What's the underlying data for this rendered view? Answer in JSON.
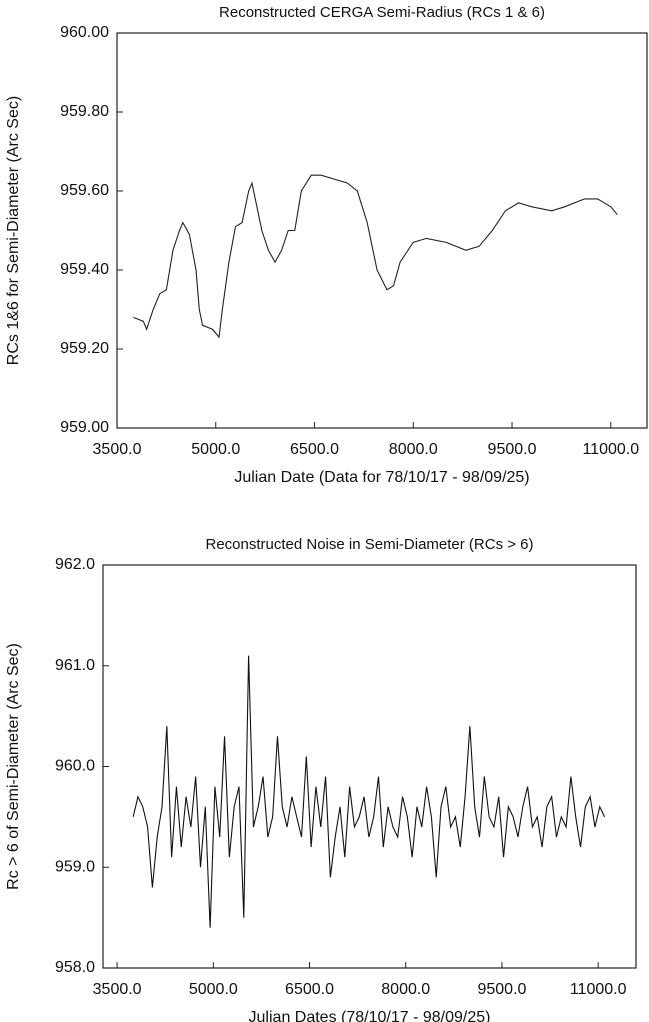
{
  "chart_data": [
    {
      "type": "line",
      "title": "Reconstructed CERGA Semi-Radius (RCs 1 & 6)",
      "x_label": "Julian Date (Data for 78/10/17 - 98/09/25)",
      "y_label": "RCs 1&6 for Semi-Diameter (Arc Sec)",
      "xlim": [
        3500,
        11550
      ],
      "ylim": [
        959.0,
        960.0
      ],
      "xticks": [
        {
          "value": 3500,
          "label": "3500.0"
        },
        {
          "value": 5000,
          "label": "5000.0"
        },
        {
          "value": 6500,
          "label": "6500.0"
        },
        {
          "value": 8000,
          "label": "8000.0"
        },
        {
          "value": 9500,
          "label": "9500.0"
        },
        {
          "value": 11000,
          "label": "11000.0"
        }
      ],
      "yticks": [
        {
          "value": 959.0,
          "label": "959.00"
        },
        {
          "value": 959.2,
          "label": "959.20"
        },
        {
          "value": 959.4,
          "label": "959.40"
        },
        {
          "value": 959.6,
          "label": "959.60"
        },
        {
          "value": 959.8,
          "label": "959.80"
        },
        {
          "value": 960.0,
          "label": "960.00"
        }
      ],
      "x": [
        3750,
        3900,
        3950,
        4050,
        4150,
        4250,
        4350,
        4450,
        4500,
        4600,
        4700,
        4750,
        4800,
        4950,
        5050,
        5100,
        5200,
        5300,
        5400,
        5500,
        5550,
        5600,
        5700,
        5800,
        5900,
        6000,
        6100,
        6200,
        6300,
        6450,
        6600,
        6800,
        7000,
        7150,
        7300,
        7450,
        7600,
        7700,
        7800,
        8000,
        8200,
        8500,
        8800,
        9000,
        9200,
        9400,
        9600,
        9800,
        10100,
        10300,
        10600,
        10800,
        11000,
        11100
      ],
      "series": [
        {
          "color": "#222222",
          "values": [
            959.28,
            959.27,
            959.25,
            959.3,
            959.34,
            959.35,
            959.45,
            959.5,
            959.52,
            959.49,
            959.4,
            959.3,
            959.26,
            959.25,
            959.23,
            959.3,
            959.42,
            959.51,
            959.52,
            959.6,
            959.62,
            959.58,
            959.5,
            959.45,
            959.42,
            959.45,
            959.5,
            959.5,
            959.6,
            959.64,
            959.64,
            959.63,
            959.62,
            959.6,
            959.52,
            959.4,
            959.35,
            959.36,
            959.42,
            959.47,
            959.48,
            959.47,
            959.45,
            959.46,
            959.5,
            959.55,
            959.57,
            959.56,
            959.55,
            959.56,
            959.58,
            959.58,
            959.56,
            959.54
          ]
        }
      ]
    },
    {
      "type": "line",
      "title": "Reconstructed Noise in Semi-Diameter (RCs > 6)",
      "x_label": "Julian Dates (78/10/17 - 98/09/25)",
      "y_label": "Rc > 6 of Semi-Diameter (Arc Sec)",
      "xlim": [
        3280,
        11590
      ],
      "ylim": [
        958.0,
        962.0
      ],
      "xticks": [
        {
          "value": 3500,
          "label": "3500.0"
        },
        {
          "value": 5000,
          "label": "5000.0"
        },
        {
          "value": 6500,
          "label": "6500.0"
        },
        {
          "value": 8000,
          "label": "8000.0"
        },
        {
          "value": 9500,
          "label": "9500.0"
        },
        {
          "value": 11000,
          "label": "11000.0"
        }
      ],
      "yticks": [
        {
          "value": 958.0,
          "label": "958.0"
        },
        {
          "value": 959.0,
          "label": "959.0"
        },
        {
          "value": 960.0,
          "label": "960.0"
        },
        {
          "value": 961.0,
          "label": "961.0"
        },
        {
          "value": 962.0,
          "label": "962.0"
        }
      ],
      "x": [
        3750,
        3825,
        3900,
        3975,
        4050,
        4125,
        4200,
        4275,
        4350,
        4425,
        4500,
        4575,
        4650,
        4725,
        4800,
        4875,
        4950,
        5025,
        5100,
        5175,
        5250,
        5325,
        5400,
        5475,
        5550,
        5625,
        5700,
        5775,
        5850,
        5925,
        6000,
        6075,
        6150,
        6225,
        6300,
        6375,
        6450,
        6525,
        6600,
        6675,
        6750,
        6825,
        6900,
        6975,
        7050,
        7125,
        7200,
        7275,
        7350,
        7425,
        7500,
        7575,
        7650,
        7725,
        7800,
        7875,
        7950,
        8025,
        8100,
        8175,
        8250,
        8325,
        8400,
        8475,
        8550,
        8625,
        8700,
        8775,
        8850,
        8925,
        9000,
        9075,
        9150,
        9225,
        9300,
        9375,
        9450,
        9525,
        9600,
        9675,
        9750,
        9825,
        9900,
        9975,
        10050,
        10125,
        10200,
        10275,
        10350,
        10425,
        10500,
        10575,
        10650,
        10725,
        10800,
        10875,
        10950,
        11025,
        11100
      ],
      "series": [
        {
          "color": "#111111",
          "values": [
            959.5,
            959.7,
            959.6,
            959.4,
            958.8,
            959.3,
            959.6,
            960.4,
            959.1,
            959.8,
            959.2,
            959.7,
            959.4,
            959.9,
            959.0,
            959.6,
            958.4,
            959.8,
            959.3,
            960.3,
            959.1,
            959.6,
            959.8,
            958.5,
            961.1,
            959.4,
            959.6,
            959.9,
            959.3,
            959.5,
            960.3,
            959.6,
            959.4,
            959.7,
            959.5,
            959.3,
            960.1,
            959.2,
            959.8,
            959.4,
            959.9,
            958.9,
            959.3,
            959.6,
            959.1,
            959.8,
            959.4,
            959.5,
            959.7,
            959.3,
            959.5,
            959.9,
            959.2,
            959.6,
            959.4,
            959.3,
            959.7,
            959.5,
            959.1,
            959.6,
            959.4,
            959.8,
            959.5,
            958.9,
            959.6,
            959.8,
            959.4,
            959.5,
            959.2,
            959.7,
            960.4,
            959.6,
            959.3,
            959.9,
            959.5,
            959.4,
            959.7,
            959.1,
            959.6,
            959.5,
            959.3,
            959.6,
            959.8,
            959.4,
            959.5,
            959.2,
            959.6,
            959.7,
            959.3,
            959.5,
            959.4,
            959.9,
            959.5,
            959.2,
            959.6,
            959.7,
            959.4,
            959.6,
            959.5
          ]
        }
      ]
    }
  ]
}
